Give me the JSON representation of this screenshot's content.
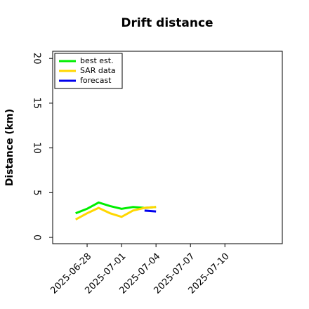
{
  "chart_data": {
    "type": "line",
    "title": "Drift distance",
    "y_label": "Distance (km)",
    "x": [
      "2025-06-27",
      "2025-06-28",
      "2025-06-29",
      "2025-06-30",
      "2025-07-01",
      "2025-07-02",
      "2025-07-03",
      "2025-07-04"
    ],
    "series": [
      {
        "name": "best est.",
        "color": "#00ee00",
        "values": [
          2.7,
          3.2,
          3.9,
          3.5,
          3.2,
          3.4,
          3.3,
          3.4
        ]
      },
      {
        "name": "SAR data",
        "color": "#ffd700",
        "values": [
          2.0,
          2.7,
          3.3,
          2.7,
          2.3,
          3.0,
          3.3,
          3.4
        ]
      },
      {
        "name": "forecast",
        "color": "#0000ee",
        "values": [
          null,
          null,
          null,
          null,
          null,
          null,
          3.0,
          2.9
        ]
      }
    ],
    "xlim": [
      "2025-06-25",
      "2025-07-15"
    ],
    "xticks": [
      "2025-06-28",
      "2025-07-01",
      "2025-07-04",
      "2025-07-07",
      "2025-07-10"
    ],
    "ylim": [
      -0.7,
      20.8
    ],
    "yticks": [
      0,
      5,
      10,
      15,
      20
    ],
    "legend": "upper left",
    "grid": false
  }
}
